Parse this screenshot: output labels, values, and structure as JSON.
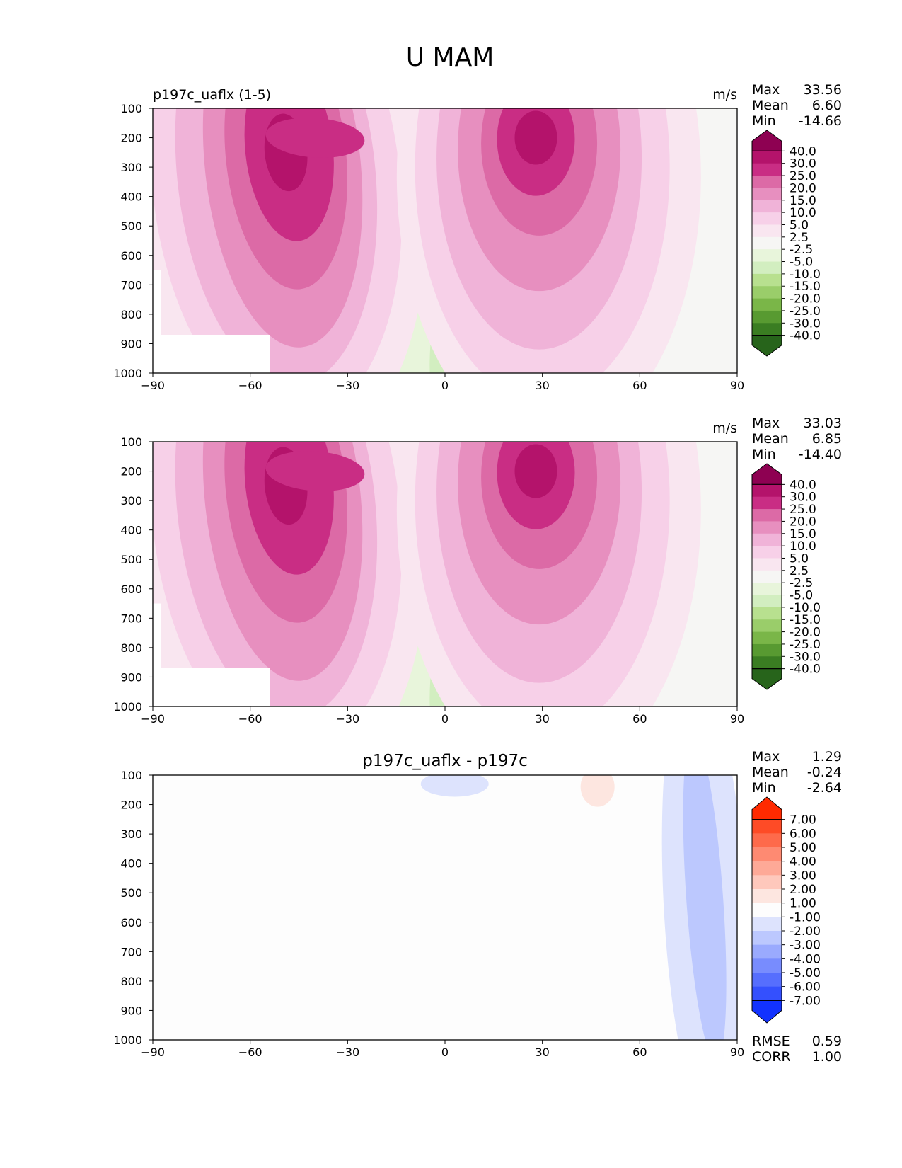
{
  "figure": {
    "title": "U MAM"
  },
  "chart_data": [
    {
      "type": "heatmap",
      "panel_title_left": "p197c_uaflx (1-5)",
      "panel_title_center": "",
      "units": "m/s",
      "stats": {
        "Max": "33.56",
        "Mean": "6.60",
        "Min": "-14.66"
      },
      "x_ticks": [
        "−90",
        "−60",
        "−30",
        "0",
        "30",
        "60",
        "90"
      ],
      "y_ticks": [
        "100",
        "200",
        "300",
        "400",
        "500",
        "600",
        "700",
        "800",
        "900",
        "1000"
      ],
      "xlim": [
        -90,
        90
      ],
      "ylim": [
        1000,
        100
      ],
      "colorbar": {
        "labels": [
          "40.0",
          "30.0",
          "25.0",
          "20.0",
          "15.0",
          "10.0",
          "5.0",
          "2.5",
          "-2.5",
          "-5.0",
          "-10.0",
          "-15.0",
          "-20.0",
          "-25.0",
          "-30.0",
          "-40.0"
        ],
        "colors": [
          "#8e0152",
          "#b4136b",
          "#c92d84",
          "#dc6aa6",
          "#e78fbf",
          "#f0b3d8",
          "#f7d0e8",
          "#f9e6f0",
          "#f6f6f4",
          "#e8f5db",
          "#d2eec0",
          "#b8e08f",
          "#9acd6a",
          "#7ab648",
          "#589a31",
          "#3a7d22",
          "#27641b"
        ]
      },
      "features": [
        {
          "name": "southern-jet-core",
          "lat": -50,
          "p": 250,
          "value": 33.56
        },
        {
          "name": "northern-jet-core",
          "lat": 28,
          "p": 210,
          "value": 33
        },
        {
          "name": "tropical-easterlies",
          "lat": 10,
          "p": 850,
          "value": -7
        }
      ]
    },
    {
      "type": "heatmap",
      "panel_title_left": "",
      "panel_title_center": "",
      "units": "m/s",
      "stats": {
        "Max": "33.03",
        "Mean": "6.85",
        "Min": "-14.40"
      },
      "x_ticks": [
        "−90",
        "−60",
        "−30",
        "0",
        "30",
        "60",
        "90"
      ],
      "y_ticks": [
        "100",
        "200",
        "300",
        "400",
        "500",
        "600",
        "700",
        "800",
        "900",
        "1000"
      ],
      "xlim": [
        -90,
        90
      ],
      "ylim": [
        1000,
        100
      ],
      "colorbar": {
        "labels": [
          "40.0",
          "30.0",
          "25.0",
          "20.0",
          "15.0",
          "10.0",
          "5.0",
          "2.5",
          "-2.5",
          "-5.0",
          "-10.0",
          "-15.0",
          "-20.0",
          "-25.0",
          "-30.0",
          "-40.0"
        ],
        "colors": [
          "#8e0152",
          "#b4136b",
          "#c92d84",
          "#dc6aa6",
          "#e78fbf",
          "#f0b3d8",
          "#f7d0e8",
          "#f9e6f0",
          "#f6f6f4",
          "#e8f5db",
          "#d2eec0",
          "#b8e08f",
          "#9acd6a",
          "#7ab648",
          "#589a31",
          "#3a7d22",
          "#27641b"
        ]
      },
      "features": [
        {
          "name": "southern-jet-core",
          "lat": -50,
          "p": 250,
          "value": 33.03
        },
        {
          "name": "northern-jet-core",
          "lat": 28,
          "p": 210,
          "value": 32
        },
        {
          "name": "tropical-easterlies",
          "lat": 10,
          "p": 850,
          "value": -7
        }
      ]
    },
    {
      "type": "heatmap",
      "panel_title_left": "",
      "panel_title_center": "p197c_uaflx - p197c",
      "units": "",
      "stats": {
        "Max": "1.29",
        "Mean": "-0.24",
        "Min": "-2.64"
      },
      "extra_stats": {
        "RMSE": "0.59",
        "CORR": "1.00"
      },
      "x_ticks": [
        "−90",
        "−60",
        "−30",
        "0",
        "30",
        "60",
        "90"
      ],
      "y_ticks": [
        "100",
        "200",
        "300",
        "400",
        "500",
        "600",
        "700",
        "800",
        "900",
        "1000"
      ],
      "xlim": [
        -90,
        90
      ],
      "ylim": [
        1000,
        100
      ],
      "colorbar": {
        "labels": [
          "7.00",
          "6.00",
          "5.00",
          "4.00",
          "3.00",
          "2.00",
          "1.00",
          "-1.00",
          "-2.00",
          "-3.00",
          "-4.00",
          "-5.00",
          "-6.00",
          "-7.00"
        ],
        "colors": [
          "#ff2a00",
          "#fe4b26",
          "#fe6a4b",
          "#fe8a72",
          "#fea997",
          "#fec8bc",
          "#fde6e0",
          "#fdfdfd",
          "#dde3fd",
          "#bcc8fe",
          "#9aaafe",
          "#788cfe",
          "#566efe",
          "#3450fe",
          "#1232fe"
        ]
      },
      "features": [
        {
          "name": "upper-negative-difference",
          "lat": 2,
          "p": 130,
          "value": -1.2
        },
        {
          "name": "upper-positive-difference",
          "lat": 47,
          "p": 140,
          "value": 1.29
        },
        {
          "name": "polar-negative-difference",
          "lat": 80,
          "p": 550,
          "value": -2.64
        }
      ]
    }
  ]
}
